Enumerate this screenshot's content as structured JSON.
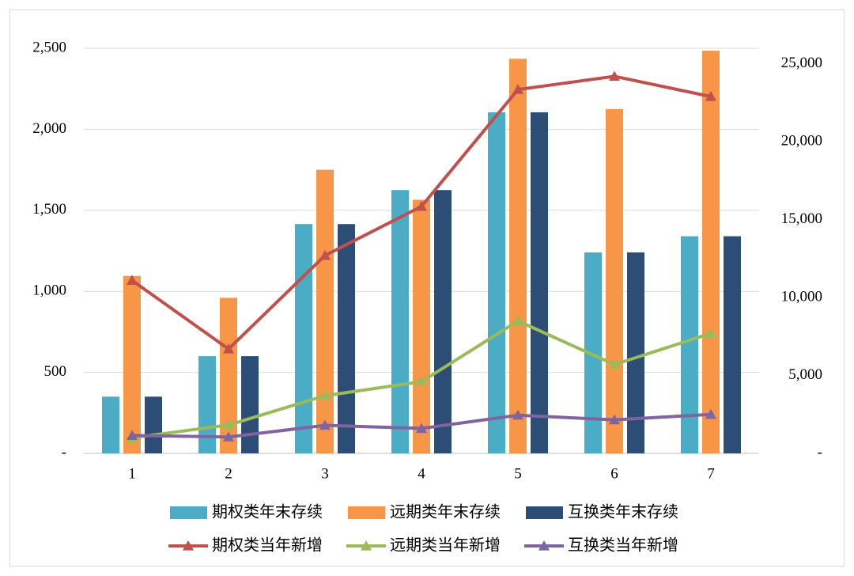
{
  "chart_data": {
    "type": "combo",
    "categories": [
      "1",
      "2",
      "3",
      "4",
      "5",
      "6",
      "7"
    ],
    "series": [
      {
        "name": "期权类年末存续",
        "type": "bar",
        "color": "#4bacc6",
        "values": [
          350,
          600,
          1415,
          1625,
          2105,
          1240,
          1340
        ]
      },
      {
        "name": "远期类年末存续",
        "type": "bar",
        "color": "#f79646",
        "values": [
          1095,
          960,
          1750,
          1565,
          2435,
          2125,
          2485
        ]
      },
      {
        "name": "互换类年末存续",
        "type": "bar",
        "color": "#2c4d75",
        "values": [
          350,
          600,
          1415,
          1625,
          2105,
          1240,
          1340
        ]
      },
      {
        "name": "期权类当年新增",
        "type": "line",
        "axis": "y2",
        "color": "#c0504d",
        "values": [
          11100,
          6700,
          12700,
          15850,
          23350,
          24200,
          22900
        ]
      },
      {
        "name": "远期类当年新增",
        "type": "line",
        "axis": "y2",
        "color": "#9bbb59",
        "values": [
          1000,
          1820,
          3700,
          4600,
          8500,
          5700,
          7700
        ]
      },
      {
        "name": "互换类当年新增",
        "type": "line",
        "axis": "y2",
        "color": "#8064a2",
        "values": [
          1150,
          1050,
          1800,
          1600,
          2450,
          2150,
          2500
        ]
      }
    ],
    "ylim": [
      0,
      2500
    ],
    "yticks": [
      {
        "value": 0,
        "label": "-"
      },
      500,
      {
        "value": 1000,
        "label": "1,000"
      },
      {
        "value": 1500,
        "label": "1,500"
      },
      {
        "value": 2000,
        "label": "2,000"
      },
      {
        "value": 2500,
        "label": "2,500"
      }
    ],
    "y2lim": [
      0,
      26000
    ],
    "y2ticks": [
      {
        "value": 0,
        "label": "-"
      },
      {
        "value": 5000,
        "label": "5,000"
      },
      {
        "value": 10000,
        "label": "10,000"
      },
      {
        "value": 15000,
        "label": "15,000"
      },
      {
        "value": 20000,
        "label": "20,000"
      },
      {
        "value": 25000,
        "label": "25,000"
      }
    ],
    "grid": true,
    "legend": "bottom"
  }
}
